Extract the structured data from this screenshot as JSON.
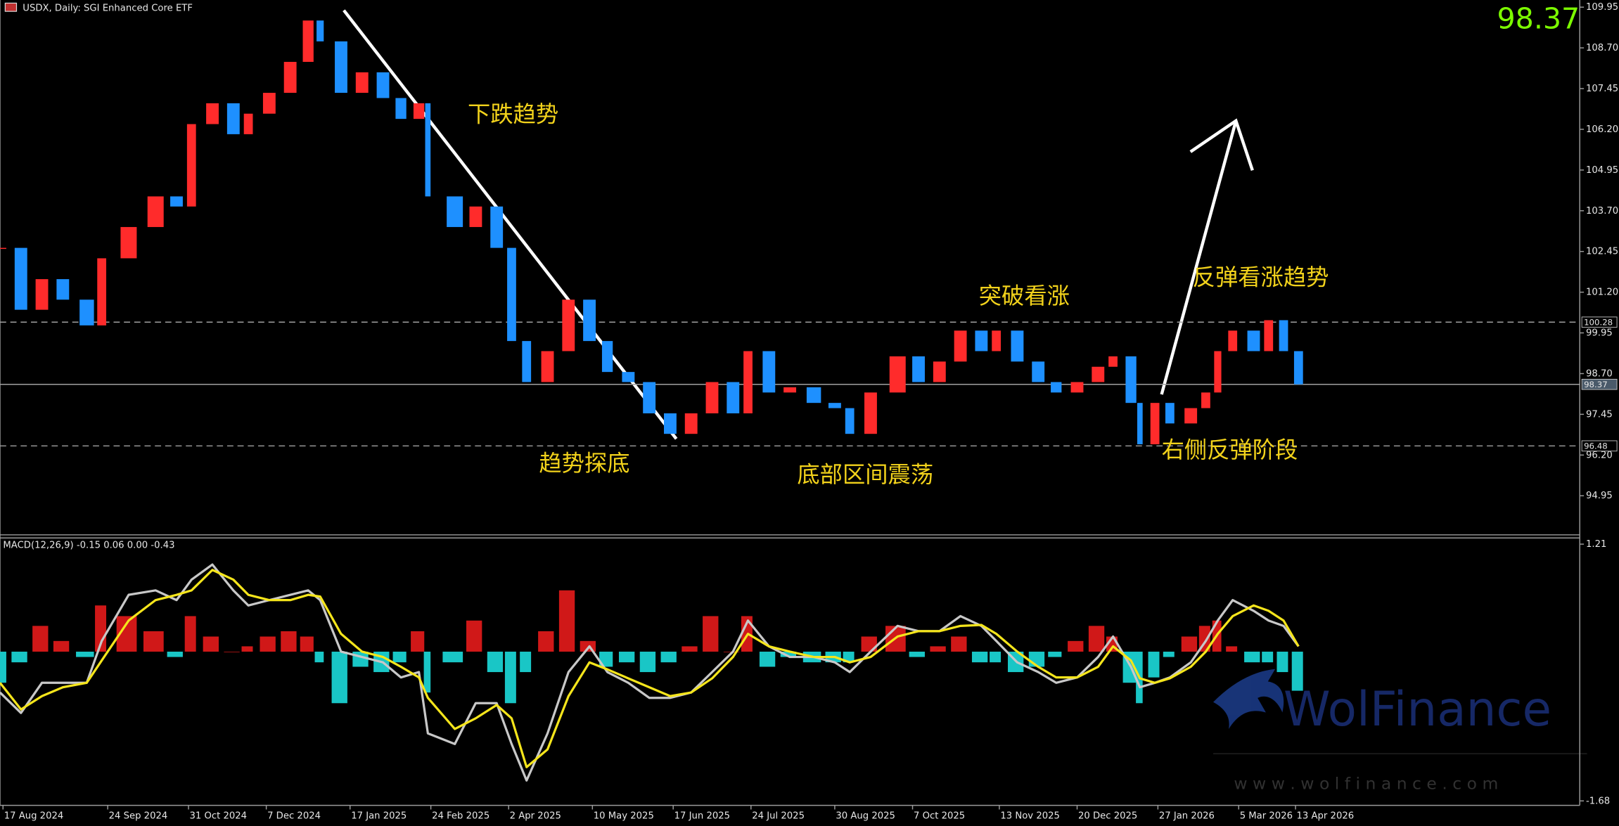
{
  "header": {
    "title": "USDX, Daily:  SGI Enhanced Core ETF",
    "last_price": 98.37
  },
  "watermark": {
    "brand": "WolFinance",
    "url": "w w w . w o l f i n a n c e . c o m"
  },
  "chart_data": [
    {
      "type": "candlestick",
      "x": [
        0,
        7,
        14,
        21,
        29,
        34,
        43,
        52,
        59,
        64,
        71,
        78,
        83,
        90,
        97,
        103,
        107,
        114,
        121,
        128,
        134,
        140,
        143,
        152,
        159,
        166,
        171,
        176,
        183,
        190,
        197,
        203,
        210,
        217,
        224,
        231,
        238,
        245,
        250,
        257,
        264,
        272,
        279,
        284,
        291,
        300,
        307,
        314,
        321,
        328,
        333,
        340,
        347,
        353,
        360,
        367,
        372,
        378,
        381,
        386,
        391,
        398,
        403,
        407,
        412,
        419,
        424,
        429,
        434
      ],
      "values": [
        102.56,
        100.66,
        101.6,
        100.97,
        100.18,
        102.24,
        103.2,
        104.14,
        103.83,
        106.36,
        107.0,
        106.05,
        106.68,
        107.32,
        108.27,
        109.54,
        108.9,
        107.32,
        107.95,
        107.16,
        106.52,
        107.0,
        104.14,
        103.2,
        103.83,
        102.56,
        99.7,
        98.44,
        99.39,
        100.97,
        99.7,
        98.75,
        98.44,
        97.48,
        96.85,
        97.48,
        98.44,
        97.48,
        99.39,
        98.12,
        98.28,
        97.8,
        97.64,
        96.85,
        98.12,
        99.23,
        98.44,
        99.07,
        100.02,
        99.39,
        100.02,
        99.07,
        98.44,
        98.12,
        98.44,
        98.91,
        99.23,
        97.8,
        96.53,
        97.8,
        97.17,
        97.64,
        98.12,
        99.39,
        100.02,
        99.39,
        100.34,
        99.39,
        98.37
      ],
      "colors": {
        "up": "#ff2b2b",
        "down": "#1e90ff"
      },
      "xlim": [
        0,
        528
      ],
      "xticks": [
        {
          "value": 1,
          "label": "17 Aug 2024"
        },
        {
          "value": 36,
          "label": "24 Sep 2024"
        },
        {
          "value": 63,
          "label": "31 Oct 2024"
        },
        {
          "value": 89,
          "label": "7 Dec 2024"
        },
        {
          "value": 117,
          "label": "17 Jan 2025"
        },
        {
          "value": 144,
          "label": "24 Feb 2025"
        },
        {
          "value": 170,
          "label": "2 Apr 2025"
        },
        {
          "value": 198,
          "label": "10 May 2025"
        },
        {
          "value": 225,
          "label": "17 Jun 2025"
        },
        {
          "value": 251,
          "label": "24 Jul 2025"
        },
        {
          "value": 279,
          "label": "30 Aug 2025"
        },
        {
          "value": 305,
          "label": "7 Oct 2025"
        },
        {
          "value": 334,
          "label": "13 Nov 2025"
        },
        {
          "value": 360,
          "label": "20 Dec 2025"
        },
        {
          "value": 387,
          "label": "27 Jan 2026"
        },
        {
          "value": 414,
          "label": "5 Mar 2026"
        },
        {
          "value": 433,
          "label": "13 Apr 2026"
        }
      ],
      "ylim": [
        93.75,
        110.17
      ],
      "yticks": [
        109.95,
        {
          "value": 108.7,
          "label": "108.70"
        },
        107.45,
        {
          "value": 106.2,
          "label": "106.20"
        },
        104.95,
        {
          "value": 103.7,
          "label": "103.70"
        },
        102.45,
        {
          "value": 101.2,
          "label": "101.20"
        },
        99.95,
        {
          "value": 98.7,
          "label": "98.70"
        },
        97.45,
        {
          "value": 96.2,
          "label": "96.20"
        },
        94.95
      ],
      "levels": [
        {
          "value": 100.28,
          "dashed": true
        },
        {
          "value": 98.37,
          "dashed": false
        },
        {
          "value": 96.48,
          "dashed": true
        }
      ],
      "annotations": [
        "下跌趋势",
        "趋势探底",
        "底部区间震荡",
        "突破看涨",
        "反弹看涨趋势",
        "右侧反弹阶段"
      ],
      "annotation_color": "#f2d21b"
    },
    {
      "type": "macd",
      "title": "MACD(12,26,9) -0.15 0.06 0.00 -0.43",
      "x": [
        0,
        7,
        14,
        21,
        29,
        34,
        43,
        52,
        59,
        64,
        71,
        78,
        83,
        90,
        97,
        103,
        107,
        114,
        121,
        128,
        134,
        140,
        143,
        152,
        159,
        166,
        171,
        176,
        183,
        190,
        197,
        203,
        210,
        217,
        224,
        231,
        238,
        245,
        250,
        257,
        264,
        272,
        279,
        284,
        291,
        300,
        307,
        314,
        321,
        328,
        333,
        340,
        347,
        353,
        360,
        367,
        372,
        378,
        381,
        386,
        391,
        398,
        403,
        407,
        412,
        419,
        424,
        429,
        434
      ],
      "series": [
        {
          "kind": "bar",
          "colors": {
            "up": "#d01818",
            "down": "#19c6c6"
          },
          "values": [
            -0.35,
            -0.12,
            0.29,
            0.12,
            -0.06,
            0.52,
            0.4,
            0.23,
            -0.06,
            0.4,
            0.17,
            0,
            0.06,
            0.17,
            0.23,
            0.17,
            -0.12,
            -0.58,
            -0.17,
            -0.23,
            -0.12,
            0.23,
            -0.46,
            -0.12,
            0.35,
            -0.23,
            -0.58,
            -0.23,
            0.23,
            0.69,
            0.12,
            -0.17,
            -0.12,
            -0.23,
            -0.12,
            0.06,
            0.4,
            0,
            0.4,
            -0.17,
            -0.06,
            -0.12,
            -0.12,
            -0.12,
            0.17,
            0.29,
            -0.06,
            0.06,
            0.17,
            -0.12,
            -0.12,
            -0.23,
            -0.17,
            -0.06,
            0.12,
            0.29,
            0.17,
            -0.35,
            -0.58,
            -0.29,
            -0.06,
            0.17,
            0.29,
            0.35,
            0.06,
            -0.12,
            -0.12,
            -0.23,
            -0.44
          ]
        },
        {
          "kind": "line",
          "color": "#c8c8c8",
          "values": [
            -0.46,
            -0.69,
            -0.35,
            -0.35,
            -0.35,
            0.12,
            0.64,
            0.69,
            0.58,
            0.81,
            0.98,
            0.69,
            0.52,
            0.58,
            0.64,
            0.69,
            0.58,
            0,
            -0.06,
            -0.12,
            -0.29,
            -0.23,
            -0.92,
            -1.04,
            -0.58,
            -0.58,
            -1.04,
            -1.45,
            -0.92,
            -0.23,
            0.06,
            -0.23,
            -0.35,
            -0.52,
            -0.52,
            -0.46,
            -0.23,
            0,
            0.35,
            0.06,
            -0.06,
            -0.06,
            -0.12,
            -0.23,
            0,
            0.29,
            0.23,
            0.23,
            0.4,
            0.29,
            0.12,
            -0.12,
            -0.23,
            -0.35,
            -0.29,
            -0.06,
            0.17,
            -0.17,
            -0.4,
            -0.35,
            -0.29,
            -0.12,
            0.12,
            0.35,
            0.58,
            0.46,
            0.35,
            0.29,
            0.06
          ]
        },
        {
          "kind": "line",
          "color": "#f5e51b",
          "values": [
            -0.35,
            -0.65,
            -0.5,
            -0.4,
            -0.35,
            -0.1,
            0.35,
            0.58,
            0.64,
            0.69,
            0.92,
            0.81,
            0.64,
            0.58,
            0.58,
            0.64,
            0.62,
            0.2,
            0,
            -0.06,
            -0.17,
            -0.29,
            -0.52,
            -0.87,
            -0.75,
            -0.6,
            -0.75,
            -1.3,
            -1.1,
            -0.5,
            -0.12,
            -0.2,
            -0.3,
            -0.4,
            -0.5,
            -0.46,
            -0.3,
            -0.06,
            0.2,
            0.06,
            0,
            -0.06,
            -0.06,
            -0.12,
            -0.06,
            0.17,
            0.23,
            0.23,
            0.29,
            0.3,
            0.2,
            0,
            -0.17,
            -0.29,
            -0.29,
            -0.17,
            0.06,
            -0.1,
            -0.3,
            -0.35,
            -0.3,
            -0.17,
            0,
            0.2,
            0.4,
            0.52,
            0.46,
            0.35,
            0.06
          ]
        }
      ],
      "xlim": [
        0,
        528
      ],
      "ylim": [
        -1.73,
        1.28
      ],
      "yticks": [
        1.21,
        -1.68
      ]
    }
  ]
}
